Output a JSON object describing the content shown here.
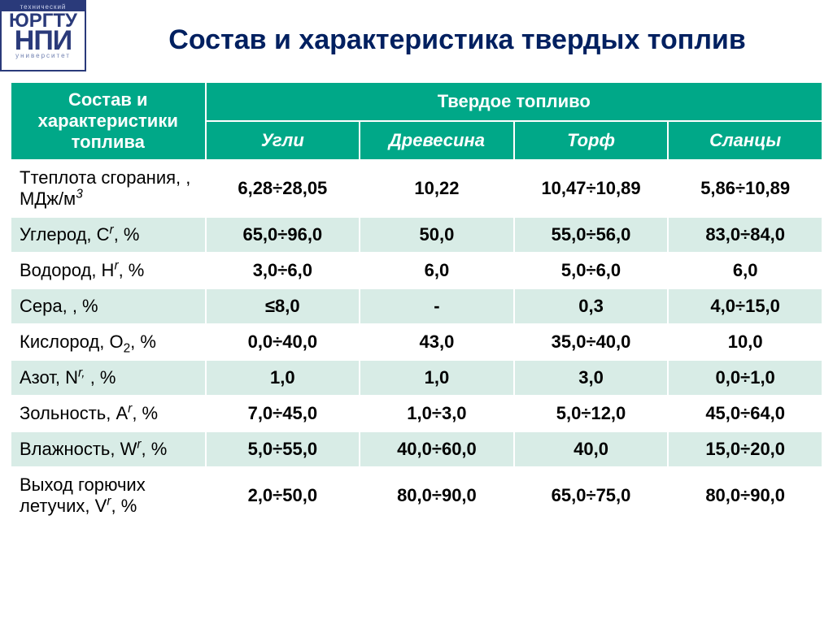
{
  "logo": {
    "top": "технический",
    "mid": "ЮРГТУ",
    "big": "НПИ",
    "bot": "университет"
  },
  "title": "Состав и характеристика твердых топлив",
  "table": {
    "colors": {
      "header_bg": "#00a888",
      "header_fg": "#ffffff",
      "row_odd_bg": "#ffffff",
      "row_even_bg": "#d8ece6",
      "border": "#ffffff",
      "text": "#000000",
      "title_color": "#002060"
    },
    "fonts": {
      "title_size_pt": 26,
      "header_size_pt": 16,
      "cell_size_pt": 16,
      "header_italic": true,
      "values_bold": true
    },
    "header": {
      "left": "Состав и характеристики топлива",
      "span": "Твердое топливо",
      "columns": [
        "Угли",
        "Древесина",
        "Торф",
        "Сланцы"
      ]
    },
    "rows": [
      {
        "label_html": " Ттеплота сгорания, , МДж/м<span class=\"sup\">3</span>",
        "v": [
          "6,28÷28,05",
          "10,22",
          "10,47÷10,89",
          "5,86÷10,89"
        ]
      },
      {
        "label_html": " Углерод, C<span class=\"sup\">r</span>, %",
        "v": [
          "65,0÷96,0",
          "50,0",
          "55,0÷56,0",
          "83,0÷84,0"
        ]
      },
      {
        "label_html": " Водород, H<span class=\"sup\">r</span>, %",
        "v": [
          "3,0÷6,0",
          "6,0",
          "5,0÷6,0",
          "6,0"
        ]
      },
      {
        "label_html": " Сера,  , %",
        "v": [
          "≤8,0",
          "-",
          "0,3",
          "4,0÷15,0"
        ]
      },
      {
        "label_html": " Кислород, O<span class=\"sub\">2</span>, %",
        "v": [
          "0,0÷40,0",
          "43,0",
          "35,0÷40,0",
          "10,0"
        ]
      },
      {
        "label_html": "Азот, N<span class=\"sup\">r,</span> , %",
        "v": [
          "1,0",
          "1,0",
          "3,0",
          "0,0÷1,0"
        ]
      },
      {
        "label_html": " Зольность, A<span class=\"sup\">r</span>, %",
        "v": [
          "7,0÷45,0",
          "1,0÷3,0",
          "5,0÷12,0",
          "45,0÷64,0"
        ]
      },
      {
        "label_html": "Влажность, W<span class=\"sup\">r</span>, %",
        "v": [
          "5,0÷55,0",
          "40,0÷60,0",
          "40,0",
          "15,0÷20,0"
        ]
      },
      {
        "label_html": "Выход горючих летучих, V<span class=\"sup\">r</span>, %",
        "v": [
          "2,0÷50,0",
          "80,0÷90,0",
          "65,0÷75,0",
          "80,0÷90,0"
        ]
      }
    ]
  }
}
